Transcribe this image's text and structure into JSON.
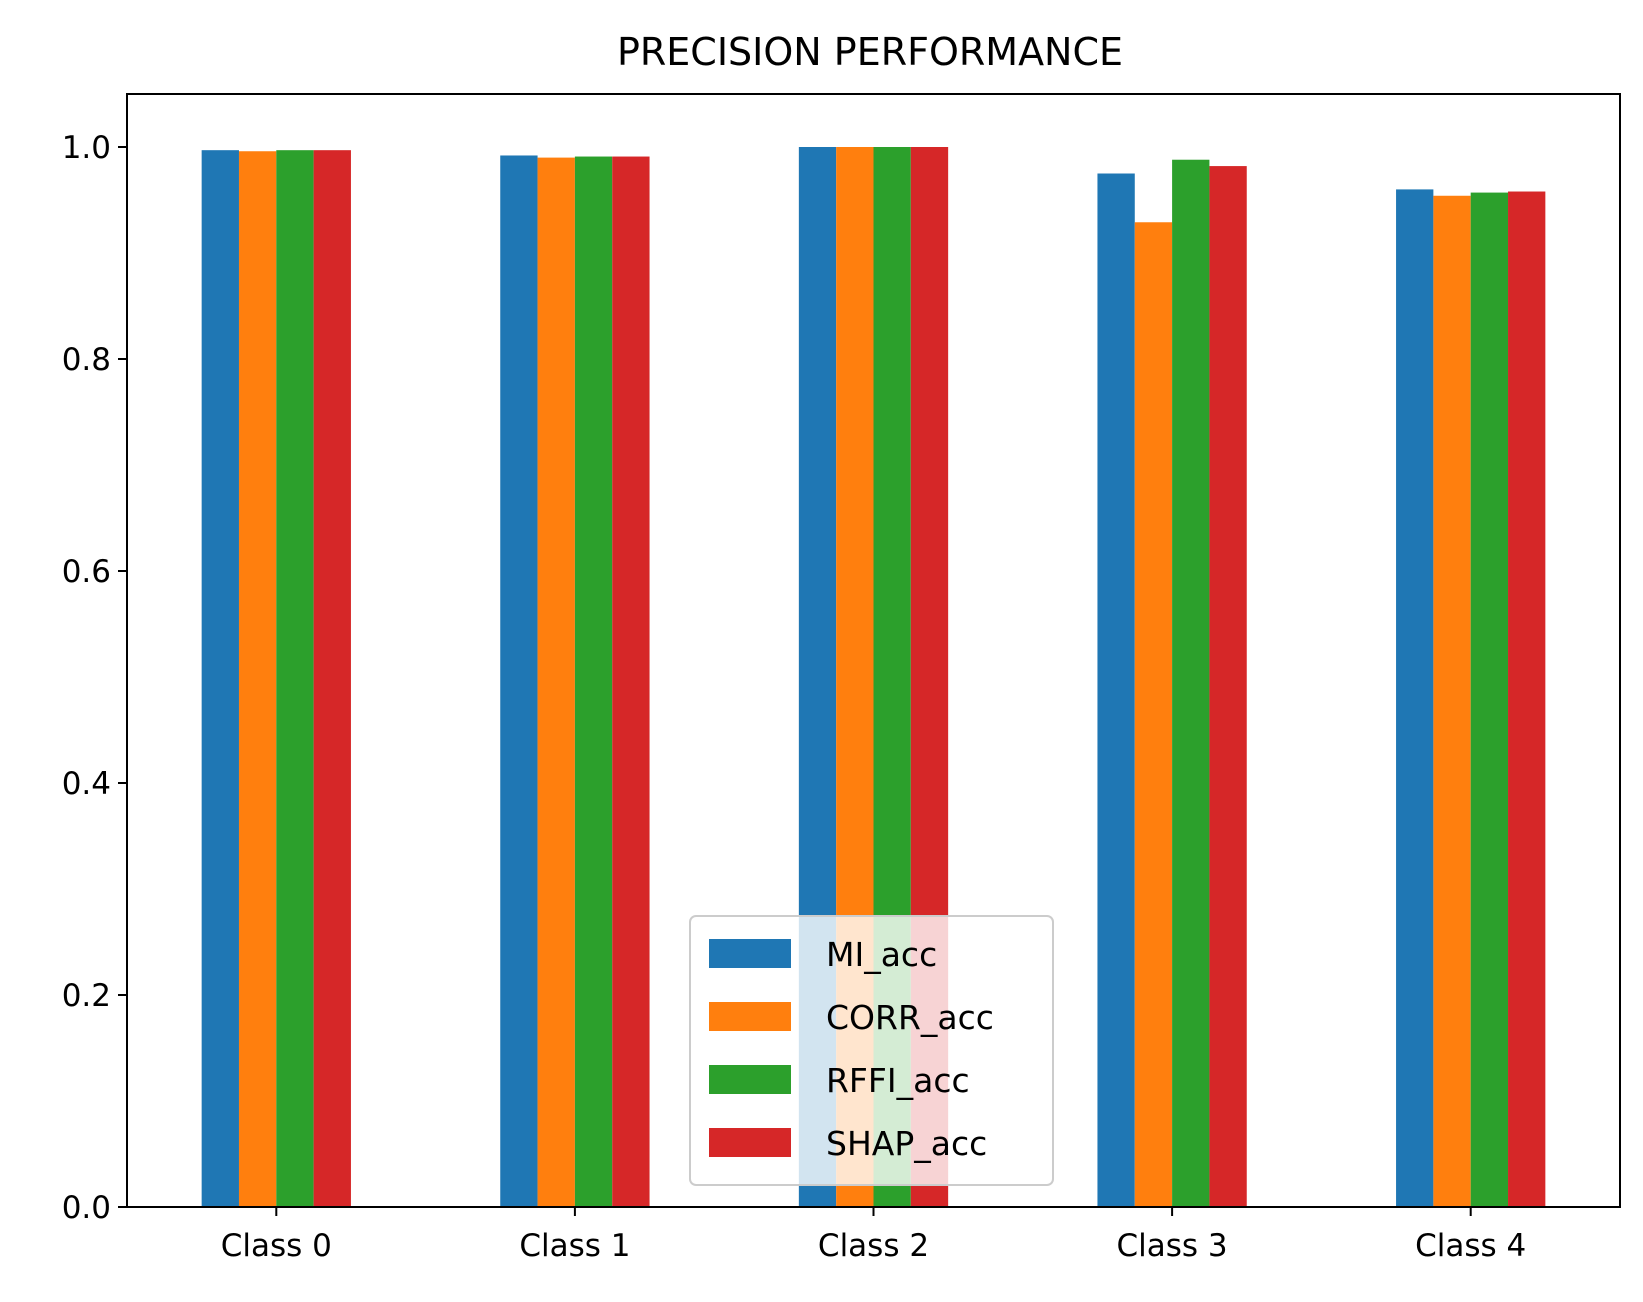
{
  "chart_data": {
    "type": "bar",
    "title": "PRECISION PERFORMANCE",
    "xlabel": "",
    "ylabel": "",
    "categories": [
      "Class 0",
      "Class 1",
      "Class 2",
      "Class 3",
      "Class 4"
    ],
    "ylim": [
      0,
      1.05
    ],
    "yticks": [
      "0.0",
      "0.2",
      "0.4",
      "0.6",
      "0.8",
      "1.0"
    ],
    "grid": false,
    "legend_position": "lower center",
    "series": [
      {
        "name": "MI_acc",
        "color": "#1f77b4",
        "values": [
          0.997,
          0.992,
          1.0,
          0.975,
          0.96
        ]
      },
      {
        "name": "CORR_acc",
        "color": "#ff7f0e",
        "values": [
          0.996,
          0.99,
          1.0,
          0.929,
          0.954
        ]
      },
      {
        "name": "RFFI_acc",
        "color": "#2ca02c",
        "values": [
          0.997,
          0.991,
          1.0,
          0.988,
          0.957
        ]
      },
      {
        "name": "SHAP_acc",
        "color": "#d62728",
        "values": [
          0.997,
          0.991,
          1.0,
          0.982,
          0.958
        ]
      }
    ]
  }
}
